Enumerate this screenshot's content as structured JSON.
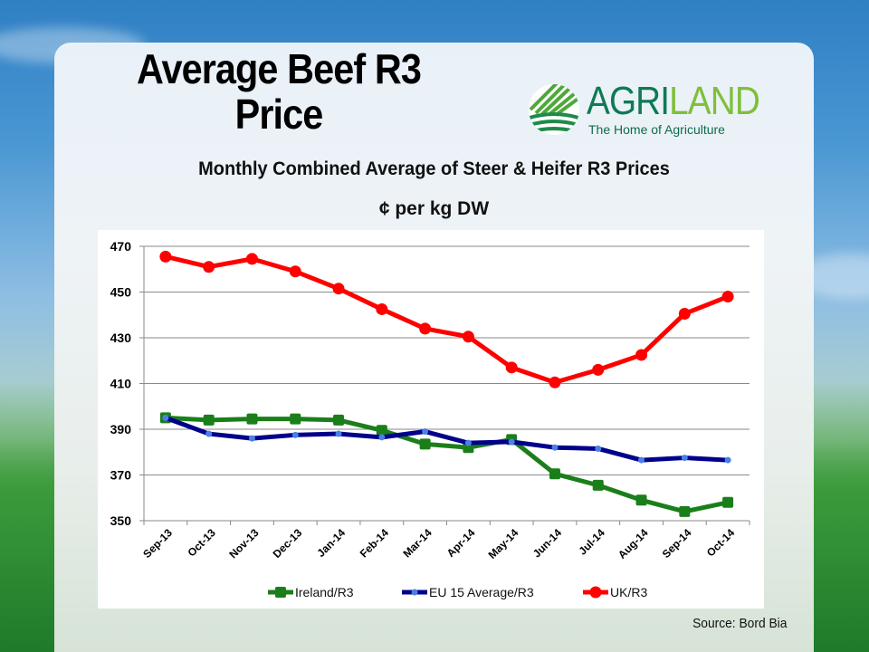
{
  "slide": {
    "title_line1": "Average Beef R3",
    "title_line2": "Price",
    "subtitle": "Monthly Combined Average of Steer & Heifer R3 Prices",
    "unit": "¢ per kg DW",
    "source": "Source: Bord Bia"
  },
  "logo": {
    "brand_part1": "AGRI",
    "brand_part2": "LAND",
    "tagline": "The Home of Agriculture",
    "colors": {
      "dark_green": "#0f7a54",
      "light_green": "#7fbf3a"
    }
  },
  "chart_data": {
    "type": "line",
    "title": "Monthly Combined Average of Steer & Heifer R3 Prices",
    "xlabel": "",
    "ylabel": "¢ per kg DW",
    "ylim": [
      350,
      470
    ],
    "yticks": [
      350,
      370,
      390,
      410,
      430,
      450,
      470
    ],
    "grid": true,
    "legend_position": "bottom",
    "categories": [
      "Sep-13",
      "Oct-13",
      "Nov-13",
      "Dec-13",
      "Jan-14",
      "Feb-14",
      "Mar-14",
      "Apr-14",
      "May-14",
      "Jun-14",
      "Jul-14",
      "Aug-14",
      "Sep-14",
      "Oct-14"
    ],
    "series": [
      {
        "name": "Ireland/R3",
        "color": "#1a7f1a",
        "marker": "square",
        "values": [
          395,
          394,
          394.5,
          394.5,
          394,
          389.5,
          383.5,
          382,
          385.5,
          370.5,
          365.5,
          359,
          354,
          358
        ]
      },
      {
        "name": "EU 15 Average/R3",
        "color": "#00008b",
        "marker": "diamond",
        "marker_color": "#4a7fe8",
        "values": [
          395,
          388,
          386,
          387.5,
          388,
          386.5,
          389,
          384,
          384.5,
          382,
          381.5,
          376.5,
          377.5,
          376.5
        ]
      },
      {
        "name": "UK/R3",
        "color": "#ff0000",
        "marker": "circle",
        "values": [
          465.5,
          461,
          464.5,
          459,
          451.5,
          442.5,
          434,
          430.5,
          417,
          410.5,
          416,
          422.5,
          440.5,
          448
        ]
      }
    ]
  }
}
